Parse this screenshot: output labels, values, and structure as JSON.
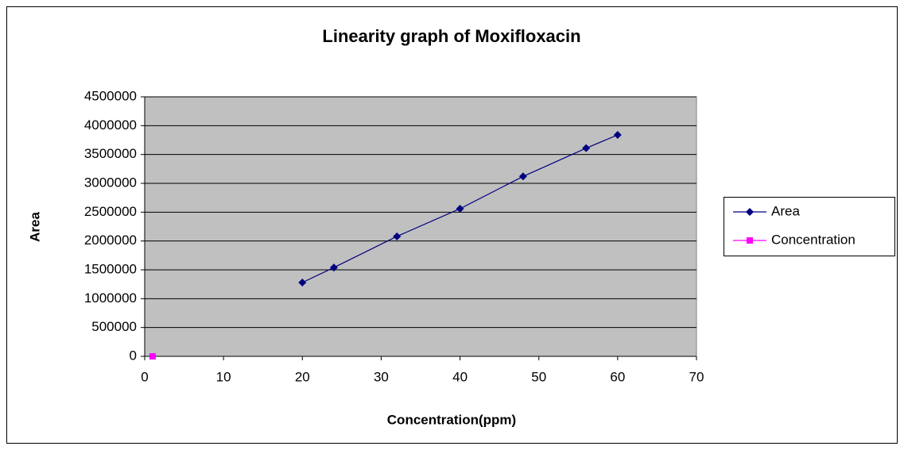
{
  "chart_data": {
    "type": "scatter-line",
    "title": "Linearity graph of Moxifloxacin",
    "x_label": "Concentration(ppm)",
    "y_label": "Area",
    "series": [
      {
        "name": "Area",
        "color": "#000080",
        "marker": "diamond",
        "x": [
          20,
          24,
          32,
          40,
          48,
          56,
          60
        ],
        "values": [
          1280000,
          1540000,
          2080000,
          2560000,
          3120000,
          3610000,
          3840000
        ]
      },
      {
        "name": "Concentration",
        "color": "#ff00ff",
        "marker": "square",
        "x": [
          1
        ],
        "values": [
          0
        ]
      }
    ],
    "xlim": [
      0,
      70
    ],
    "xticks": [
      0,
      10,
      20,
      30,
      40,
      50,
      60,
      70
    ],
    "ylim": [
      0,
      4500000
    ],
    "yticks": [
      0,
      500000,
      1000000,
      1500000,
      2000000,
      2500000,
      3000000,
      3500000,
      4000000,
      4500000
    ],
    "grid": true,
    "legend": "right"
  }
}
